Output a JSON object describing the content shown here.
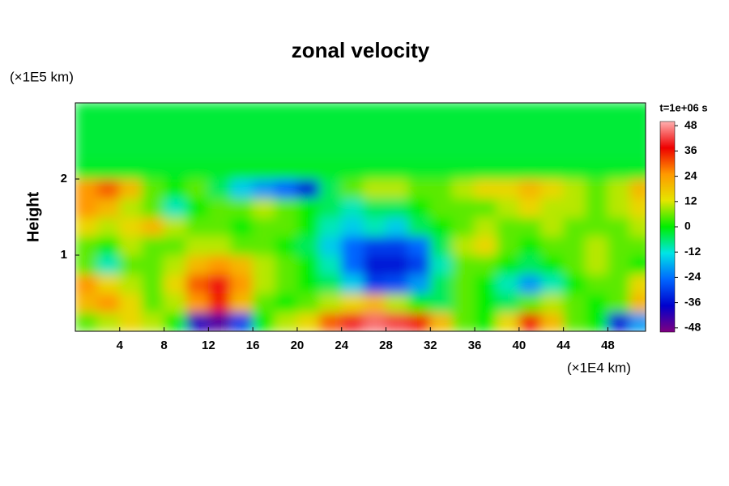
{
  "chart_data": {
    "type": "heatmap",
    "title": "zonal velocity",
    "y_unit": "(×1E5 km)",
    "ylabel": "Height",
    "x_unit": "(×1E4 km)",
    "time_label": "t=1e+06 s",
    "xlim": [
      0,
      51.4
    ],
    "ylim": [
      0,
      3
    ],
    "xticks": [
      4,
      8,
      12,
      16,
      20,
      24,
      28,
      32,
      36,
      40,
      44,
      48
    ],
    "yticks": [
      1,
      2
    ],
    "clim": [
      -50,
      50
    ],
    "cticks": [
      48,
      36,
      24,
      12,
      0,
      -12,
      -24,
      -36,
      -48
    ],
    "colorscale": [
      "#800080",
      "#0000cc",
      "#0066ff",
      "#00e5e5",
      "#00ee00",
      "#e5e500",
      "#ff9900",
      "#ee0000",
      "#ffb0b0"
    ],
    "x": [
      1,
      3,
      5,
      7,
      9,
      11,
      13,
      15,
      17,
      19,
      21,
      23,
      25,
      27,
      29,
      31,
      33,
      35,
      37,
      39,
      41,
      43,
      45,
      47,
      49,
      51
    ],
    "y": [
      0.125,
      0.375,
      0.625,
      0.875,
      1.125,
      1.375,
      1.625,
      1.875,
      2.125,
      2.375,
      2.625,
      2.875
    ],
    "z": [
      [
        5,
        10,
        15,
        10,
        0,
        -40,
        -45,
        -30,
        0,
        10,
        15,
        30,
        40,
        45,
        42,
        35,
        20,
        5,
        0,
        15,
        35,
        20,
        5,
        0,
        -35,
        -20
      ],
      [
        20,
        25,
        15,
        5,
        10,
        25,
        35,
        20,
        5,
        0,
        5,
        10,
        15,
        20,
        10,
        0,
        -5,
        5,
        0,
        -5,
        5,
        10,
        5,
        0,
        5,
        20
      ],
      [
        25,
        15,
        10,
        5,
        15,
        30,
        38,
        25,
        10,
        5,
        0,
        -5,
        -15,
        -30,
        -28,
        -20,
        -5,
        5,
        0,
        -10,
        -20,
        -10,
        0,
        5,
        5,
        15
      ],
      [
        5,
        -10,
        5,
        5,
        10,
        20,
        25,
        20,
        10,
        5,
        0,
        -10,
        -25,
        -35,
        -35,
        -30,
        -10,
        5,
        5,
        0,
        -5,
        0,
        5,
        10,
        5,
        0
      ],
      [
        5,
        0,
        10,
        5,
        5,
        10,
        10,
        5,
        5,
        0,
        -5,
        -15,
        -25,
        -30,
        -30,
        -25,
        -5,
        10,
        15,
        5,
        0,
        5,
        5,
        10,
        5,
        5
      ],
      [
        15,
        10,
        15,
        20,
        10,
        5,
        5,
        0,
        5,
        5,
        0,
        -10,
        -15,
        -10,
        -15,
        -5,
        0,
        5,
        10,
        5,
        5,
        10,
        5,
        5,
        5,
        10
      ],
      [
        25,
        20,
        10,
        5,
        -10,
        0,
        5,
        5,
        10,
        5,
        0,
        -5,
        -10,
        -5,
        -5,
        0,
        5,
        5,
        5,
        10,
        15,
        10,
        10,
        5,
        10,
        15
      ],
      [
        25,
        30,
        20,
        5,
        0,
        5,
        -5,
        -15,
        -20,
        -25,
        -35,
        -5,
        5,
        10,
        10,
        5,
        5,
        10,
        15,
        15,
        20,
        15,
        10,
        5,
        10,
        20
      ],
      [
        -2,
        -2,
        -2,
        -2,
        -2,
        -2,
        -2,
        -2,
        -2,
        -2,
        -2,
        -2,
        -2,
        -2,
        -2,
        -2,
        -2,
        -2,
        -2,
        -2,
        -2,
        -2,
        -2,
        -2,
        -2,
        -2
      ],
      [
        -3,
        -3,
        -3,
        -3,
        -3,
        -3,
        -3,
        -3,
        -3,
        -3,
        -3,
        -3,
        -3,
        -3,
        -3,
        -3,
        -3,
        -3,
        -3,
        -3,
        -3,
        -3,
        -3,
        -3,
        -3,
        -3
      ],
      [
        -3,
        -3,
        -3,
        -3,
        -3,
        -3,
        -3,
        -3,
        -3,
        -3,
        -3,
        -3,
        -3,
        -3,
        -3,
        -3,
        -3,
        -3,
        -3,
        -3,
        -3,
        -3,
        -3,
        -3,
        -3,
        -3
      ],
      [
        -3,
        -3,
        -3,
        -3,
        -3,
        -3,
        -3,
        -3,
        -3,
        -3,
        -3,
        -3,
        -3,
        -3,
        -3,
        -3,
        -3,
        -3,
        -3,
        -3,
        -3,
        -3,
        -3,
        -3,
        -3,
        -3
      ]
    ]
  }
}
